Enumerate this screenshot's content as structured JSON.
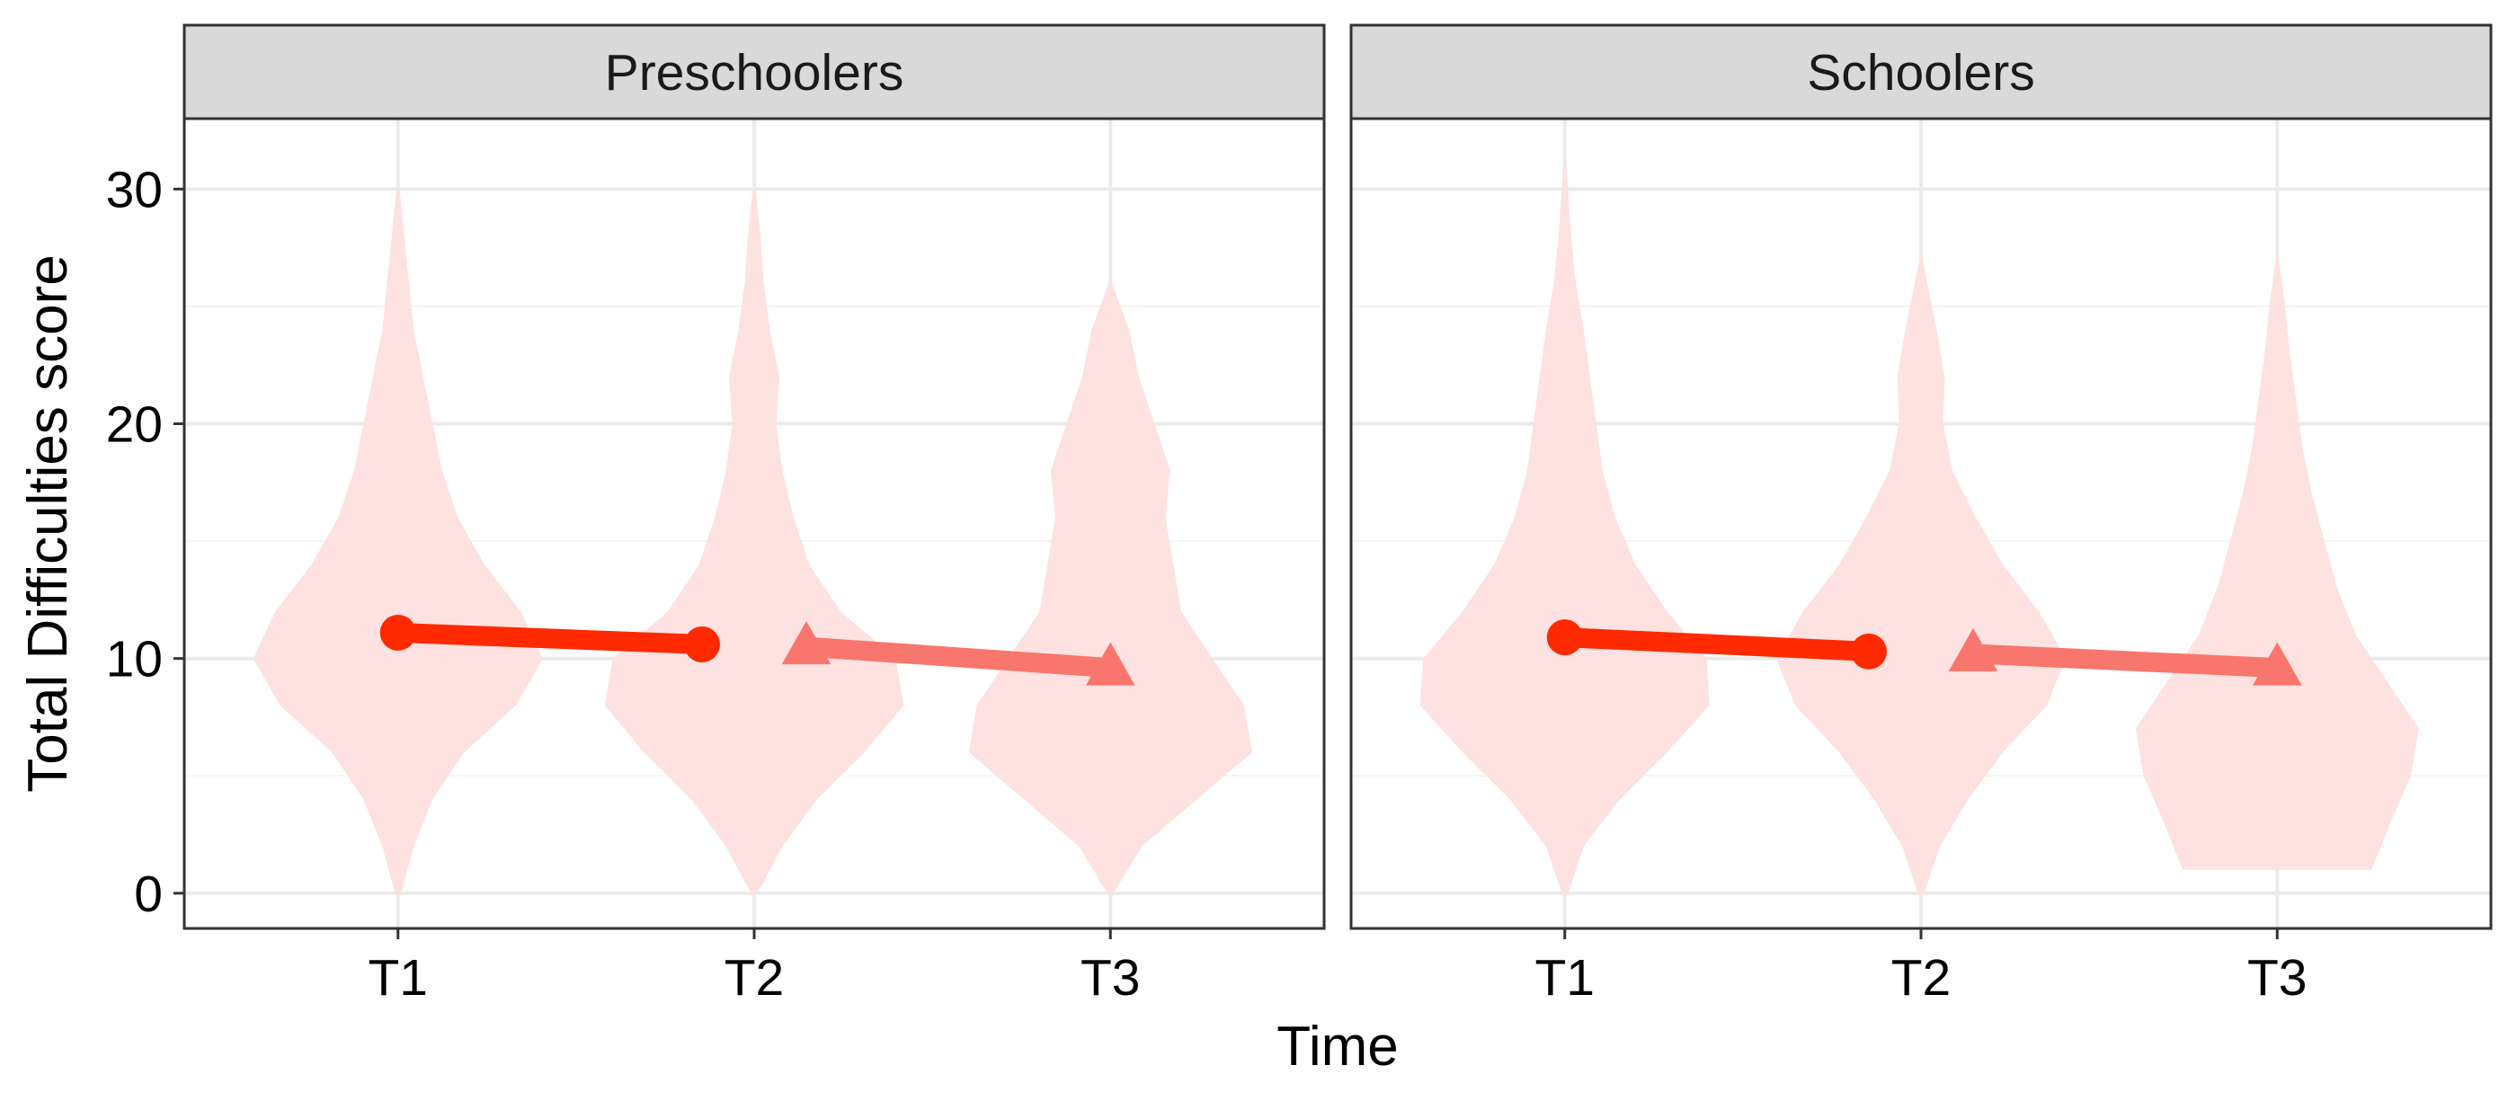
{
  "chart_data": {
    "type": "violin",
    "xlabel": "Time",
    "ylabel": "Total Difficulties score",
    "ylim": [
      -1.5,
      33
    ],
    "yticks": [
      0,
      10,
      20,
      30
    ],
    "ytick_labels": [
      "0",
      "10",
      "20",
      "30"
    ],
    "categories": [
      "T1",
      "T2",
      "T3"
    ],
    "grid": true,
    "legend": "none",
    "colors": {
      "violin_fill": "#fde0df",
      "series_circle": "#ff2a00",
      "series_triangle": "#f8766d",
      "strip_bg": "#d9d9d9",
      "grid_major": "#ebebeb",
      "grid_minor": "#f5f5f5"
    },
    "panels": [
      {
        "title": "Preschoolers",
        "violins": [
          {
            "category": "T1",
            "min": 0,
            "max": 30,
            "profile": [
              [
                0,
                0.02
              ],
              [
                2,
                0.1
              ],
              [
                4,
                0.22
              ],
              [
                6,
                0.42
              ],
              [
                8,
                0.75
              ],
              [
                10,
                0.92
              ],
              [
                12,
                0.78
              ],
              [
                14,
                0.55
              ],
              [
                16,
                0.38
              ],
              [
                18,
                0.28
              ],
              [
                20,
                0.22
              ],
              [
                22,
                0.16
              ],
              [
                24,
                0.1
              ],
              [
                26,
                0.07
              ],
              [
                28,
                0.04
              ],
              [
                30,
                0.01
              ]
            ]
          },
          {
            "category": "T2",
            "min": 0,
            "max": 30,
            "profile": [
              [
                0,
                0.02
              ],
              [
                2,
                0.18
              ],
              [
                4,
                0.4
              ],
              [
                6,
                0.7
              ],
              [
                8,
                0.95
              ],
              [
                10,
                0.9
              ],
              [
                12,
                0.55
              ],
              [
                14,
                0.35
              ],
              [
                16,
                0.25
              ],
              [
                18,
                0.18
              ],
              [
                20,
                0.14
              ],
              [
                22,
                0.16
              ],
              [
                24,
                0.1
              ],
              [
                26,
                0.06
              ],
              [
                28,
                0.04
              ],
              [
                30,
                0.01
              ]
            ]
          },
          {
            "category": "T3",
            "min": 0,
            "max": 26,
            "profile": [
              [
                0,
                0.02
              ],
              [
                2,
                0.2
              ],
              [
                4,
                0.55
              ],
              [
                6,
                0.9
              ],
              [
                8,
                0.85
              ],
              [
                10,
                0.65
              ],
              [
                12,
                0.45
              ],
              [
                14,
                0.4
              ],
              [
                16,
                0.35
              ],
              [
                18,
                0.38
              ],
              [
                20,
                0.28
              ],
              [
                22,
                0.18
              ],
              [
                24,
                0.12
              ],
              [
                26,
                0.01
              ]
            ]
          }
        ],
        "series": [
          {
            "marker": "circle",
            "points": [
              {
                "x": "T1",
                "y": 11.1
              },
              {
                "x": "T2",
                "y": 10.6
              }
            ]
          },
          {
            "marker": "triangle",
            "points": [
              {
                "x": "T2",
                "y": 10.5
              },
              {
                "x": "T3",
                "y": 9.6
              }
            ]
          }
        ]
      },
      {
        "title": "Schoolers",
        "violins": [
          {
            "category": "T1",
            "min": 0,
            "max": 31,
            "profile": [
              [
                0,
                0.02
              ],
              [
                2,
                0.12
              ],
              [
                4,
                0.35
              ],
              [
                6,
                0.65
              ],
              [
                8,
                0.92
              ],
              [
                10,
                0.9
              ],
              [
                12,
                0.65
              ],
              [
                14,
                0.45
              ],
              [
                16,
                0.32
              ],
              [
                18,
                0.24
              ],
              [
                20,
                0.2
              ],
              [
                22,
                0.16
              ],
              [
                24,
                0.12
              ],
              [
                26,
                0.07
              ],
              [
                28,
                0.04
              ],
              [
                31,
                0.01
              ]
            ]
          },
          {
            "category": "T2",
            "min": 0,
            "max": 27,
            "profile": [
              [
                0,
                0.02
              ],
              [
                2,
                0.12
              ],
              [
                4,
                0.3
              ],
              [
                6,
                0.52
              ],
              [
                8,
                0.8
              ],
              [
                10,
                0.92
              ],
              [
                12,
                0.75
              ],
              [
                14,
                0.52
              ],
              [
                16,
                0.35
              ],
              [
                18,
                0.2
              ],
              [
                20,
                0.14
              ],
              [
                22,
                0.15
              ],
              [
                24,
                0.1
              ],
              [
                27,
                0.01
              ]
            ]
          },
          {
            "category": "T3",
            "min": 1,
            "max": 27,
            "profile": [
              [
                1,
                0.6
              ],
              [
                3,
                0.72
              ],
              [
                5,
                0.85
              ],
              [
                7,
                0.9
              ],
              [
                9,
                0.7
              ],
              [
                11,
                0.5
              ],
              [
                13,
                0.38
              ],
              [
                15,
                0.3
              ],
              [
                17,
                0.22
              ],
              [
                19,
                0.16
              ],
              [
                21,
                0.12
              ],
              [
                23,
                0.08
              ],
              [
                25,
                0.05
              ],
              [
                27,
                0.01
              ]
            ]
          }
        ],
        "series": [
          {
            "marker": "circle",
            "points": [
              {
                "x": "T1",
                "y": 10.9
              },
              {
                "x": "T2",
                "y": 10.3
              }
            ]
          },
          {
            "marker": "triangle",
            "points": [
              {
                "x": "T2",
                "y": 10.2
              },
              {
                "x": "T3",
                "y": 9.6
              }
            ]
          }
        ]
      }
    ]
  }
}
